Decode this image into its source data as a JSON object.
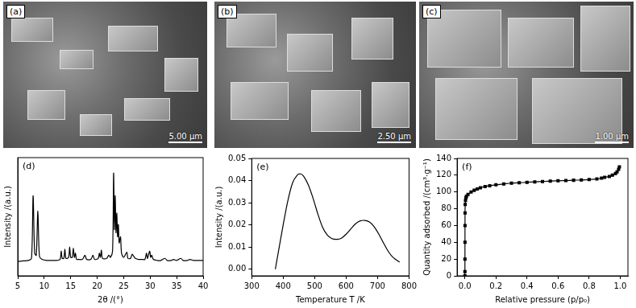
{
  "images": [
    {
      "label": "(a)",
      "scale_bar": "5.00 μm"
    },
    {
      "label": "(b)",
      "scale_bar": "2.50 μm"
    },
    {
      "label": "(c)",
      "scale_bar": "1.00 μm"
    }
  ],
  "chart_data": [
    {
      "type": "line",
      "annotation": "(d)",
      "x_label": "2θ /(°)",
      "y_label": "Intensity /(a.u.)",
      "x": [
        5,
        6,
        7,
        7.6,
        7.9,
        8.2,
        8.5,
        8.8,
        9.1,
        9.6,
        10.5,
        11.5,
        12.4,
        13.0,
        13.2,
        13.4,
        13.7,
        13.9,
        14.1,
        14.6,
        14.8,
        15.0,
        15.3,
        15.5,
        15.7,
        15.9,
        16.1,
        16.5,
        17.2,
        17.7,
        18.0,
        18.8,
        19.2,
        19.5,
        20.2,
        20.4,
        20.6,
        20.8,
        21.0,
        21.8,
        22.2,
        22.5,
        22.9,
        23.1,
        23.25,
        23.4,
        23.55,
        23.7,
        23.85,
        24.0,
        24.15,
        24.4,
        24.6,
        25.0,
        25.6,
        25.8,
        26.3,
        26.6,
        26.9,
        27.2,
        27.8,
        28.5,
        29.0,
        29.3,
        29.5,
        29.9,
        30.1,
        30.3,
        30.6,
        31.3,
        32.0,
        32.8,
        33.2,
        34.0,
        34.4,
        35.0,
        35.8,
        36.2,
        37.0,
        37.5,
        38.2,
        39,
        40
      ],
      "values": [
        14,
        14.5,
        15,
        17,
        78,
        22,
        20,
        63,
        19,
        16,
        15,
        15,
        15,
        16,
        24,
        17,
        17,
        26,
        17,
        18,
        28,
        18,
        18,
        27,
        18,
        22,
        16,
        16,
        16,
        20,
        16,
        16,
        20,
        16,
        17,
        22,
        18,
        25,
        17,
        17,
        20,
        18,
        24,
        100,
        45,
        78,
        42,
        61,
        38,
        50,
        32,
        38,
        22,
        18,
        23,
        17,
        17,
        21,
        19,
        17,
        16,
        16,
        16,
        22,
        17,
        24,
        18,
        20,
        16,
        15,
        15,
        17,
        15,
        15,
        16,
        15,
        17,
        15,
        15,
        16,
        15,
        15,
        15
      ],
      "color": "#000000",
      "marker": "none",
      "line_style": "solid",
      "xlim": [
        5,
        40
      ],
      "xticks": [
        5,
        10,
        15,
        20,
        25,
        30,
        35,
        40
      ],
      "ylim": [
        0,
        115
      ],
      "grid": false,
      "tick_labels": "x"
    },
    {
      "type": "line",
      "annotation": "(e)",
      "x_label": "Temperature T /K",
      "y_label": "Intensity /(a.u.)",
      "x": [
        375,
        385,
        400,
        415,
        430,
        445,
        455,
        465,
        480,
        495,
        510,
        525,
        540,
        555,
        570,
        585,
        600,
        615,
        630,
        645,
        660,
        675,
        690,
        705,
        720,
        735,
        750,
        770
      ],
      "values": [
        0.0,
        0.008,
        0.02,
        0.031,
        0.039,
        0.0425,
        0.043,
        0.042,
        0.038,
        0.032,
        0.025,
        0.019,
        0.0155,
        0.0138,
        0.0135,
        0.014,
        0.0158,
        0.0182,
        0.0205,
        0.0218,
        0.022,
        0.0212,
        0.019,
        0.0155,
        0.0115,
        0.0078,
        0.0052,
        0.0032
      ],
      "color": "#000000",
      "marker": "none",
      "line_style": "solid",
      "xlim": [
        300,
        800
      ],
      "xticks": [
        300,
        400,
        500,
        600,
        700,
        800
      ],
      "ylim": [
        -0.003,
        0.05
      ],
      "yticks": [
        {
          "value": 0,
          "label": "0.00"
        },
        {
          "value": 0.01,
          "label": "0.01"
        },
        {
          "value": 0.02,
          "label": "0.02"
        },
        {
          "value": 0.03,
          "label": "0.03"
        },
        {
          "value": 0.04,
          "label": "0.04"
        },
        {
          "value": 0.05,
          "label": "0.05"
        }
      ],
      "grid": false
    },
    {
      "type": "line",
      "annotation": "(f)",
      "x_label": "Relative pressure (p/p₀)",
      "y_label": "Quantity adsorbed /(cm³·g⁻¹)",
      "x": [
        0.0001,
        0.0002,
        0.0004,
        0.0006,
        0.0008,
        0.001,
        0.002,
        0.004,
        0.007,
        0.01,
        0.02,
        0.04,
        0.06,
        0.08,
        0.1,
        0.13,
        0.16,
        0.2,
        0.25,
        0.3,
        0.35,
        0.4,
        0.45,
        0.5,
        0.55,
        0.6,
        0.65,
        0.7,
        0.75,
        0.8,
        0.85,
        0.88,
        0.9,
        0.93,
        0.95,
        0.97,
        0.98,
        0.99,
        0.995
      ],
      "values": [
        0,
        5,
        20,
        40,
        60,
        75,
        85,
        90,
        93,
        95,
        97,
        100,
        102,
        103.5,
        105,
        106.5,
        107.5,
        108.5,
        109.5,
        110.5,
        111,
        111.5,
        112,
        112.5,
        113,
        113.3,
        113.6,
        114,
        114.3,
        114.8,
        115.5,
        116.5,
        117.5,
        118.5,
        120,
        122,
        124,
        127,
        130
      ],
      "color": "#000000",
      "marker": "square",
      "line_style": "solid",
      "xlim": [
        -0.05,
        1.05
      ],
      "xticks": [
        {
          "value": 0,
          "label": "0.0"
        },
        0.2,
        0.4,
        0.6,
        0.8,
        {
          "value": 1,
          "label": "1.0"
        }
      ],
      "ylim": [
        0,
        140
      ],
      "yticks": [
        0,
        20,
        40,
        60,
        80,
        100,
        120,
        140
      ],
      "grid": false
    }
  ]
}
